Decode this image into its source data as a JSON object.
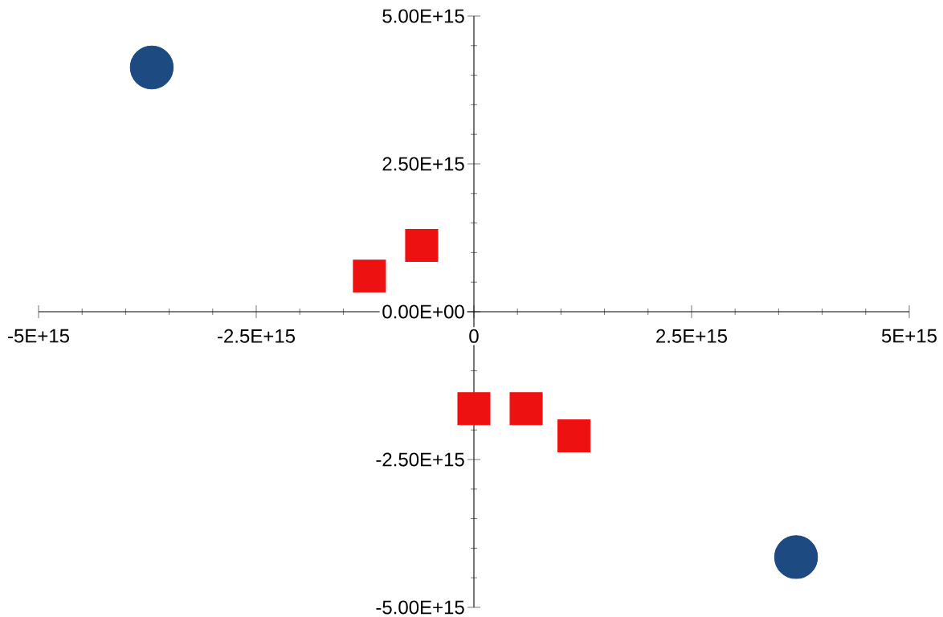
{
  "chart_data": {
    "type": "scatter",
    "series": [
      {
        "color": "#1e4a82",
        "marker": "circle",
        "x": [
          -3700000000000000.0,
          3700000000000000.0
        ],
        "values": [
          4130000000000000.0,
          -4150000000000000.0
        ]
      },
      {
        "color": "#ee1111",
        "marker": "square",
        "x": [
          -1200000000000000.0,
          -600000000000000.0,
          0,
          600000000000000.0,
          1150000000000000.0
        ],
        "values": [
          600000000000000.0,
          1120000000000000.0,
          -1640000000000000.0,
          -1640000000000000.0,
          -2100000000000000.0
        ]
      }
    ],
    "xlim": [
      -5000000000000000.0,
      5000000000000000.0
    ],
    "ylim": [
      -5000000000000000.0,
      5000000000000000.0
    ],
    "xticks": [
      {
        "value": -5000000000000000.0,
        "label": "-5E+15"
      },
      {
        "value": -2500000000000000.0,
        "label": "-2.5E+15"
      },
      {
        "value": 0,
        "label": "0"
      },
      {
        "value": 2500000000000000.0,
        "label": "2.5E+15"
      },
      {
        "value": 5000000000000000.0,
        "label": "5E+15"
      }
    ],
    "yticks": [
      {
        "value": -5000000000000000.0,
        "label": "-5.00E+15"
      },
      {
        "value": -2500000000000000.0,
        "label": "-2.50E+15"
      },
      {
        "value": 0,
        "label": "0.00E+00"
      },
      {
        "value": 2500000000000000.0,
        "label": "2.50E+15"
      },
      {
        "value": 5000000000000000.0,
        "label": "5.00E+15"
      }
    ],
    "grid": false
  }
}
